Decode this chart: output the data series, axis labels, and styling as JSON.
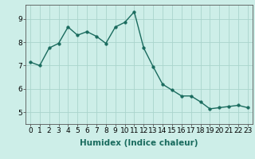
{
  "x": [
    0,
    1,
    2,
    3,
    4,
    5,
    6,
    7,
    8,
    9,
    10,
    11,
    12,
    13,
    14,
    15,
    16,
    17,
    18,
    19,
    20,
    21,
    22,
    23
  ],
  "y": [
    7.15,
    7.0,
    7.75,
    7.95,
    8.65,
    8.3,
    8.45,
    8.25,
    7.95,
    8.65,
    8.85,
    9.3,
    7.75,
    6.95,
    6.2,
    5.95,
    5.7,
    5.7,
    5.45,
    5.15,
    5.2,
    5.25,
    5.3,
    5.2
  ],
  "line_color": "#1a6b5e",
  "marker_color": "#1a6b5e",
  "bg_color": "#cdeee8",
  "grid_color": "#aad4cc",
  "xlabel": "Humidex (Indice chaleur)",
  "ylim": [
    4.5,
    9.6
  ],
  "xlim": [
    -0.5,
    23.5
  ],
  "yticks": [
    5,
    6,
    7,
    8,
    9
  ],
  "xticks": [
    0,
    1,
    2,
    3,
    4,
    5,
    6,
    7,
    8,
    9,
    10,
    11,
    12,
    13,
    14,
    15,
    16,
    17,
    18,
    19,
    20,
    21,
    22,
    23
  ],
  "xlabel_fontsize": 7.5,
  "tick_fontsize": 6.5,
  "line_width": 1.0,
  "marker_size": 2.5
}
